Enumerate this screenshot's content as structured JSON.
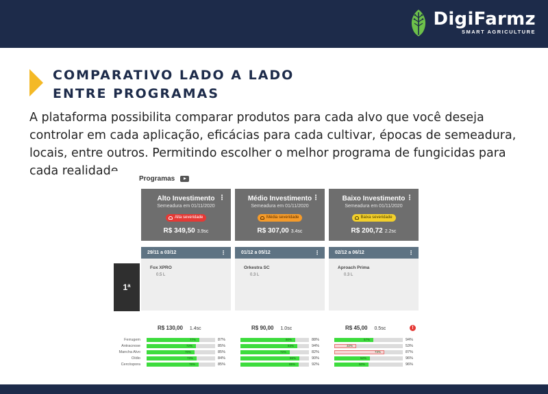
{
  "brand": {
    "name_part1": "Digi",
    "name_part2": "Farmz",
    "tagline": "SMART AGRICULTURE"
  },
  "heading": {
    "line1": "COMPARATIVO LADO A LADO",
    "line2": "ENTRE PROGRAMAS"
  },
  "description": "A plataforma possibilita comparar produtos para cada alvo que você deseja controlar em cada aplicação, eficácias para cada cultivar, épocas de semeadura, locais, entre outros. Permitindo escolher o melhor programa de fungicidas para cada realidade.",
  "screenshot": {
    "section_label": "Programas",
    "rank_label": "1ª",
    "disease_labels": [
      "Ferrugem",
      "Antracnose",
      "Mancha Alvo",
      "Oídio",
      "Cercóspora"
    ],
    "programs": [
      {
        "title": "Alto Investimento",
        "sowing": "Semeadura em 01/11/2020",
        "severity": "Alta severidade",
        "severity_color": "#e53935",
        "severity_text_color": "#ffffff",
        "price": "R$ 349,50",
        "price_sc": "3.9sc",
        "phase_range": "29/11 a 03/12",
        "product": "Fox XPRO",
        "dose": "0.5 L",
        "cost": "R$ 130,00",
        "cost_sc": "1.4sc",
        "alert": false,
        "efficacy": [
          {
            "inner": "77%",
            "outer": "87%",
            "fill": 0.77,
            "low": false
          },
          {
            "inner": "72%",
            "outer": "85%",
            "fill": 0.72,
            "low": false
          },
          {
            "inner": "70%",
            "outer": "85%",
            "fill": 0.7,
            "low": false
          },
          {
            "inner": "73%",
            "outer": "84%",
            "fill": 0.73,
            "low": false
          },
          {
            "inner": "76%",
            "outer": "85%",
            "fill": 0.76,
            "low": false
          }
        ]
      },
      {
        "title": "Médio Investimento",
        "sowing": "Semeadura em 01/11/2020",
        "severity": "Média severidade",
        "severity_color": "#f59b2a",
        "severity_text_color": "#5a2f00",
        "price": "R$ 307,00",
        "price_sc": "3.4sc",
        "phase_range": "01/12 a 05/12",
        "product": "Orkestra SC",
        "dose": "0.3 L",
        "cost": "R$ 90,00",
        "cost_sc": "1.0sc",
        "alert": false,
        "efficacy": [
          {
            "inner": "80%",
            "outer": "88%",
            "fill": 0.8,
            "low": false
          },
          {
            "inner": "83%",
            "outer": "94%",
            "fill": 0.83,
            "low": false
          },
          {
            "inner": "72%",
            "outer": "82%",
            "fill": 0.72,
            "low": false
          },
          {
            "inner": "86%",
            "outer": "90%",
            "fill": 0.86,
            "low": false
          },
          {
            "inner": "85%",
            "outer": "92%",
            "fill": 0.85,
            "low": false
          }
        ]
      },
      {
        "title": "Baixo Investimento",
        "sowing": "Semeadura em 01/11/2020",
        "severity": "Baixa severidade",
        "severity_color": "#f3d02b",
        "severity_text_color": "#4a3b00",
        "price": "R$ 200,72",
        "price_sc": "2.2sc",
        "phase_range": "02/12 a 06/12",
        "product": "Aproach Prima",
        "dose": "0.3 L",
        "cost": "R$ 45,00",
        "cost_sc": "0.5sc",
        "alert": true,
        "alert_symbol": "!",
        "efficacy": [
          {
            "inner": "57%",
            "outer": "94%",
            "fill": 0.57,
            "low": false
          },
          {
            "inner": "32%",
            "outer": "53%",
            "fill": 0.32,
            "low": true
          },
          {
            "inner": "73%",
            "outer": "87%",
            "fill": 0.73,
            "low": true
          },
          {
            "inner": "52%",
            "outer": "96%",
            "fill": 0.52,
            "low": false
          },
          {
            "inner": "50%",
            "outer": "96%",
            "fill": 0.5,
            "low": false
          }
        ]
      }
    ]
  }
}
